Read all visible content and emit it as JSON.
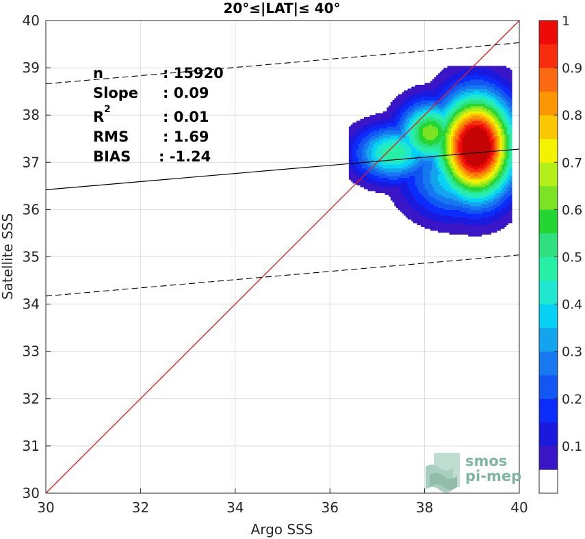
{
  "chart_data": {
    "type": "heatmap",
    "title": "20°≤|LAT|≤ 40°",
    "xlabel": "Argo SSS",
    "ylabel": "Satellite SSS",
    "xlim": [
      30,
      40
    ],
    "ylim": [
      30,
      40
    ],
    "x_ticks": [
      "30",
      "32",
      "34",
      "36",
      "38",
      "40"
    ],
    "y_ticks": [
      "30",
      "31",
      "32",
      "33",
      "34",
      "35",
      "36",
      "37",
      "38",
      "39",
      "40"
    ],
    "grid": true,
    "stats": [
      {
        "label": "n",
        "value": ": 15920"
      },
      {
        "label": "Slope",
        "value": ": 0.09"
      },
      {
        "label": "R",
        "sup": "2",
        "value": ": 0.01"
      },
      {
        "label": "RMS",
        "value": ": 1.69"
      },
      {
        "label": "BIAS",
        "value": ": -1.24"
      }
    ],
    "one_to_one_line": {
      "color": "#e41a1c",
      "from": [
        30,
        30
      ],
      "to": [
        40,
        40
      ]
    },
    "regression_line": {
      "color": "#000000",
      "from": [
        30,
        36.42
      ],
      "to": [
        40,
        37.28
      ]
    },
    "envelope_lines": [
      {
        "style": "dashed",
        "from": [
          30,
          38.66
        ],
        "to": [
          40,
          39.53
        ]
      },
      {
        "style": "dashed",
        "from": [
          30,
          34.17
        ],
        "to": [
          40,
          35.04
        ]
      }
    ],
    "density_peak": {
      "x": 39.1,
      "y": 37.3,
      "value": 1.0
    },
    "density_centers": [
      {
        "x": 39.1,
        "y": 37.35,
        "weight": 1.0,
        "sx": 0.55,
        "sy": 0.75
      },
      {
        "x": 38.1,
        "y": 37.65,
        "weight": 0.52,
        "sx": 0.45,
        "sy": 0.45
      },
      {
        "x": 37.3,
        "y": 37.2,
        "weight": 0.42,
        "sx": 0.55,
        "sy": 0.4
      },
      {
        "x": 38.6,
        "y": 36.6,
        "weight": 0.3,
        "sx": 0.7,
        "sy": 0.55
      }
    ],
    "colorbar": {
      "min": 0,
      "max": 1,
      "tick_labels": [
        "0.1",
        "0.2",
        "0.3",
        "0.4",
        "0.5",
        "0.6",
        "0.7",
        "0.8",
        "0.9",
        "1"
      ],
      "tick_values": [
        0.1,
        0.2,
        0.3,
        0.4,
        0.5,
        0.6,
        0.7,
        0.8,
        0.9,
        1.0
      ],
      "levels": [
        0,
        0.05,
        0.1,
        0.15,
        0.2,
        0.25,
        0.3,
        0.35,
        0.4,
        0.45,
        0.5,
        0.55,
        0.6,
        0.65,
        0.7,
        0.75,
        0.8,
        0.85,
        0.9,
        0.95,
        1.0
      ],
      "colors": [
        "#ffffff",
        "#5a0aa6",
        "#3a16c6",
        "#1a1adf",
        "#0b2cfb",
        "#1357f2",
        "#1779f0",
        "#14a4ee",
        "#08d2f4",
        "#1fe7d0",
        "#27f0a6",
        "#2ee07e",
        "#24d632",
        "#7be323",
        "#b5ef1a",
        "#f3f300",
        "#f9c800",
        "#fb9600",
        "#fb6a10",
        "#f62e0e",
        "#ee0a08",
        "#c40404",
        "#8a0000"
      ]
    }
  },
  "logo": {
    "line1": "smos",
    "line2": "pi-mep"
  }
}
